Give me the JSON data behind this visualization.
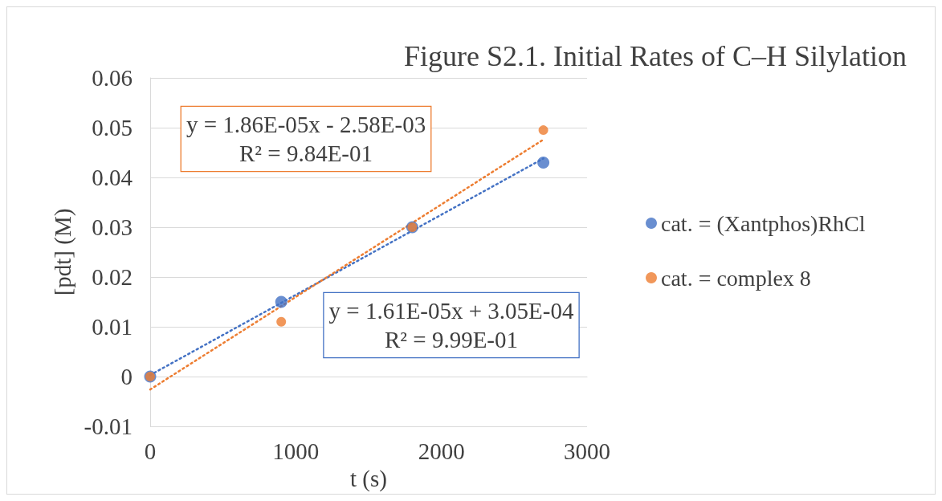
{
  "chart_data": {
    "type": "scatter",
    "title": "Figure S2.1. Initial Rates of C–H Silylation",
    "xlabel": "t (s)",
    "ylabel": "[pdt] (M)",
    "series": [
      {
        "name": "cat. = (Xantphos)RhCl",
        "color": "#4472c4",
        "x": [
          0,
          900,
          1800,
          2700
        ],
        "values": [
          0,
          0.015,
          0.03,
          0.043
        ]
      },
      {
        "name": "cat. = complex 8",
        "color": "#ed7d31",
        "x": [
          0,
          900,
          1800,
          2700
        ],
        "values": [
          0,
          0.011,
          0.03,
          0.0495
        ]
      },
      {
        "type": "line",
        "color": "#4472c4",
        "x": [
          0,
          2700
        ],
        "values": [
          0.0003,
          0.0438
        ],
        "line_style": "dotted",
        "marker": "none"
      },
      {
        "type": "line",
        "color": "#ed7d31",
        "x": [
          0,
          2700
        ],
        "values": [
          -0.0026,
          0.0476
        ],
        "line_style": "dotted",
        "marker": "none"
      }
    ],
    "annotations": [
      "y = 1.61E-05x + 3.05E-04\nR² = 9.99E-01",
      "y = 1.86E-05x - 2.58E-03\nR² = 9.84E-01"
    ],
    "xlim": [
      0,
      3000
    ],
    "xticks": [
      0,
      1000,
      2000,
      3000
    ],
    "ylim": [
      -0.01,
      0.06
    ],
    "yticks": [
      -0.01,
      0,
      0.01,
      0.02,
      0.03,
      0.04,
      0.05,
      0.06
    ],
    "grid": "y",
    "legend": "right",
    "marker": "circle"
  }
}
